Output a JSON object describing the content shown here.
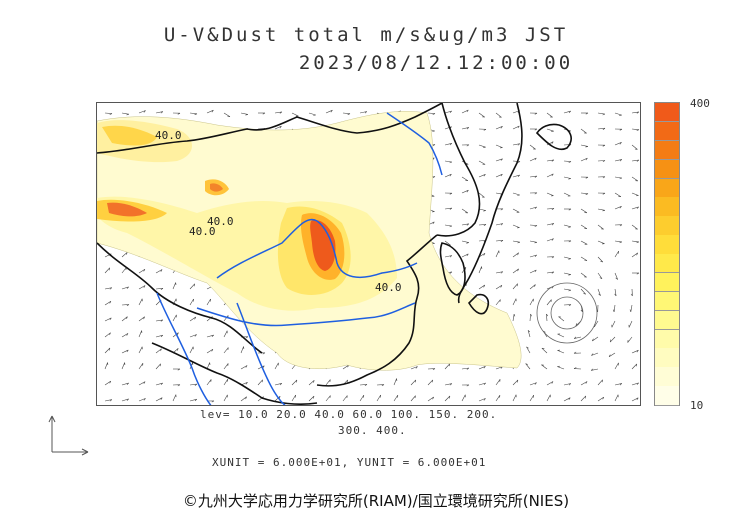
{
  "header": {
    "title": "U-V&Dust total m/s&ug/m3 JST",
    "timestamp": "2023/08/12.12:00:00"
  },
  "map": {
    "contour_labels": [
      "40.0",
      "40.0",
      "40.0",
      "40.0"
    ],
    "colors": {
      "land_border": "#000000",
      "rivers": "#1f5fe0",
      "dust_low": "#fffbd0",
      "dust_mid": "#fff07a",
      "dust_high": "#ffc62b",
      "dust_peak": "#f05a1a"
    }
  },
  "legend": {
    "contour_levels_line1": "lev= 10.0 20.0 40.0 60.0 100. 150. 200.",
    "contour_levels_line2": "300. 400.",
    "units_line": "XUNIT = 6.000E+01, YUNIT = 6.000E+01",
    "colorbar_max": "400",
    "colorbar_min": "10",
    "colorbar_colors": [
      "#f05a1a",
      "#f26a16",
      "#f47c14",
      "#f69114",
      "#f9a619",
      "#fbbb22",
      "#fdcd2e",
      "#ffdd3a",
      "#ffe94a",
      "#fff25c",
      "#fff775",
      "#fffa90",
      "#fffbaa",
      "#fffcc0",
      "#fffdd6",
      "#fffee8"
    ]
  },
  "footer": {
    "credit": "©九州大学応用力学研究所(RIAM)/国立環境研究所(NIES)"
  }
}
